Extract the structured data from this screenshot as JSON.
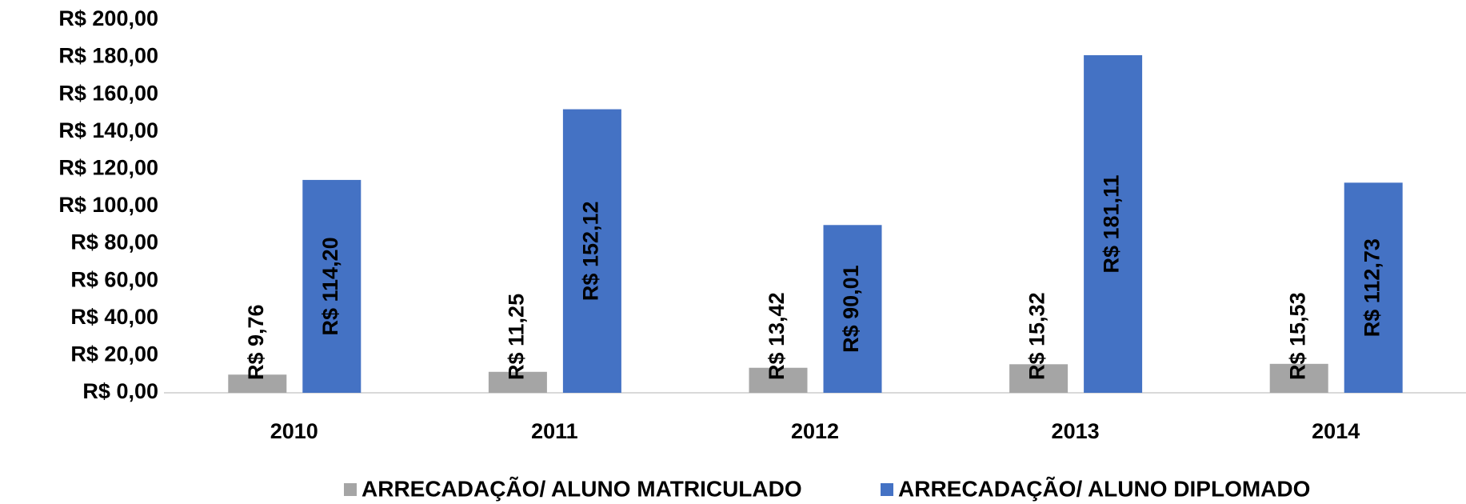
{
  "chart_data": {
    "type": "bar",
    "categories": [
      "2010",
      "2011",
      "2012",
      "2013",
      "2014"
    ],
    "series": [
      {
        "name": "ARRECADAÇÃO/ ALUNO MATRICULADO",
        "color": "#a5a5a5",
        "values": [
          9.76,
          11.25,
          13.42,
          15.32,
          15.53
        ],
        "value_labels": [
          "R$ 9,76",
          "R$ 11,25",
          "R$ 13,42",
          "R$ 15,32",
          "R$ 15,53"
        ]
      },
      {
        "name": "ARRECADAÇÃO/ ALUNO DIPLOMADO",
        "color": "#4472c4",
        "values": [
          114.2,
          152.12,
          90.01,
          181.11,
          112.73
        ],
        "value_labels": [
          "R$ 114,20",
          "R$ 152,12",
          "R$ 90,01",
          "R$ 181,11",
          "R$ 112,73"
        ]
      }
    ],
    "ylim": [
      0,
      200
    ],
    "yticks": [
      {
        "value": 0,
        "label": "R$ 0,00"
      },
      {
        "value": 20,
        "label": "R$ 20,00"
      },
      {
        "value": 40,
        "label": "R$ 40,00"
      },
      {
        "value": 60,
        "label": "R$ 60,00"
      },
      {
        "value": 80,
        "label": "R$ 80,00"
      },
      {
        "value": 100,
        "label": "R$ 100,00"
      },
      {
        "value": 120,
        "label": "R$ 120,00"
      },
      {
        "value": 140,
        "label": "R$ 140,00"
      },
      {
        "value": 160,
        "label": "R$ 160,00"
      },
      {
        "value": 180,
        "label": "R$ 180,00"
      },
      {
        "value": 200,
        "label": "R$ 200,00"
      }
    ],
    "grid": false,
    "legend": "bottom"
  }
}
